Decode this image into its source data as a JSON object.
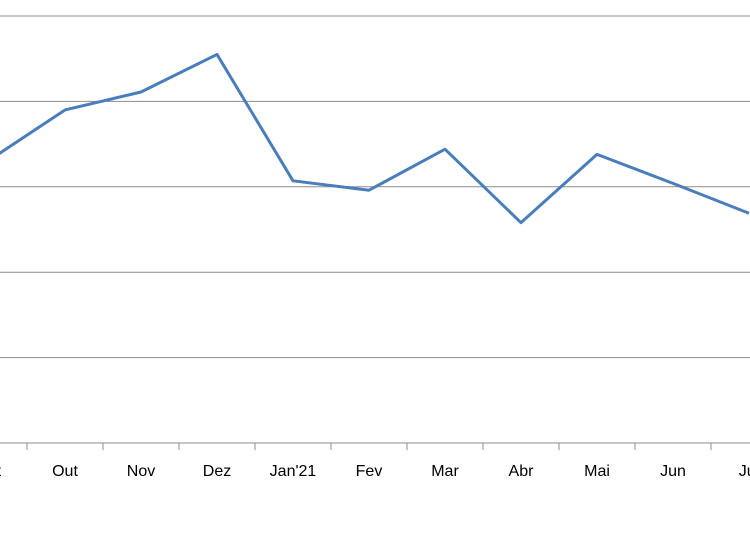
{
  "chart_data": {
    "type": "line",
    "categories": [
      "Set",
      "Out",
      "Nov",
      "Dez",
      "Jan'21",
      "Fev",
      "Mar",
      "Abr",
      "Mai",
      "Jun",
      "Jul"
    ],
    "series": [
      {
        "color": "#4a7ebb",
        "values": [
          3.31,
          3.9,
          4.11,
          4.55,
          3.07,
          2.96,
          3.44,
          2.58,
          3.38,
          3.04,
          2.69
        ]
      }
    ],
    "ylim": [
      0,
      5
    ],
    "yticks": [
      0,
      1,
      2,
      3,
      4,
      5
    ],
    "grid": true
  }
}
